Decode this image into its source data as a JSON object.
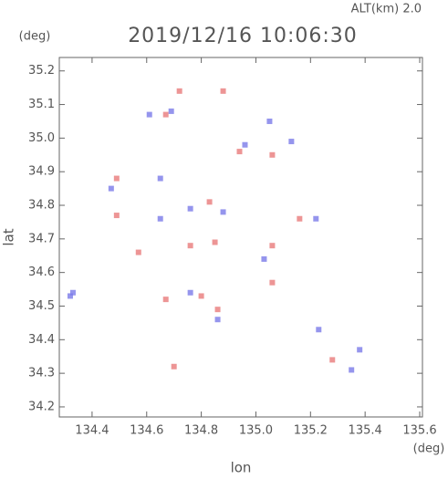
{
  "chart_data": {
    "type": "scatter",
    "title": "2019/12/16 10:06:30",
    "subtitle": "ALT(km) 2.0",
    "x_label": "lon",
    "y_label": "lat",
    "x_unit": "(deg)",
    "y_unit": "(deg)",
    "xlim": [
      134.28,
      135.61
    ],
    "ylim": [
      34.17,
      35.24
    ],
    "xticks": [
      134.4,
      134.6,
      134.8,
      {
        "value": 135,
        "label": "135.0"
      },
      135.2,
      135.4,
      135.6
    ],
    "yticks": [
      34.2,
      34.3,
      34.4,
      34.5,
      34.6,
      34.7,
      34.8,
      34.9,
      {
        "value": 35,
        "label": "35.0"
      },
      35.1,
      35.2
    ],
    "series": [
      {
        "color": "#e87a7a",
        "x": [
          134.88,
          134.72,
          134.67,
          134.94,
          135.06,
          134.49,
          134.49,
          134.76,
          134.85,
          135.06,
          134.57,
          134.67,
          134.8,
          134.86,
          135.06,
          135.28,
          134.7,
          134.83,
          135.16
        ],
        "y": [
          35.14,
          35.14,
          35.07,
          34.96,
          34.95,
          34.88,
          34.77,
          34.68,
          34.69,
          34.68,
          34.66,
          34.52,
          34.53,
          34.49,
          34.57,
          34.34,
          34.32,
          34.81,
          34.76
        ]
      },
      {
        "color": "#7a7ae8",
        "x": [
          134.32,
          134.61,
          134.69,
          135.05,
          135.13,
          134.76,
          134.65,
          134.88,
          134.65,
          134.47,
          135.22,
          134.86,
          134.76,
          135.03,
          135.35,
          135.38,
          135.23,
          134.33,
          134.96
        ],
        "y": [
          34.53,
          35.07,
          35.08,
          35.05,
          34.99,
          34.79,
          34.76,
          34.78,
          34.88,
          34.85,
          34.76,
          34.46,
          34.54,
          34.64,
          34.31,
          34.37,
          34.43,
          34.54,
          34.98
        ]
      }
    ]
  }
}
